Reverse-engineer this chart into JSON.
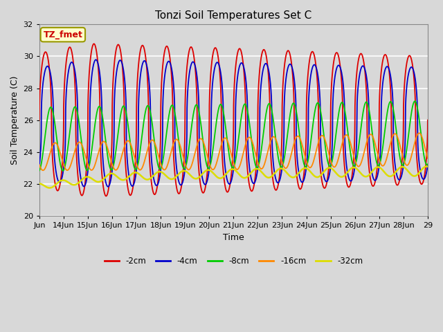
{
  "title": "Tonzi Soil Temperatures Set C",
  "xlabel": "Time",
  "ylabel": "Soil Temperature (C)",
  "ylim": [
    20,
    32
  ],
  "xlim": [
    13,
    29
  ],
  "annotation_text": "TZ_fmet",
  "annotation_bgcolor": "#ffffcc",
  "annotation_edgecolor": "#999900",
  "annotation_textcolor": "#cc0000",
  "background_color": "#d8d8d8",
  "grid_color": "#ffffff",
  "legend_colors": [
    "#dd0000",
    "#0000cc",
    "#00cc00",
    "#ff8800",
    "#dddd00"
  ],
  "legend_labels": [
    "-2cm",
    "-4cm",
    "-8cm",
    "-16cm",
    "-32cm"
  ],
  "xtick_positions": [
    13,
    14,
    15,
    16,
    17,
    18,
    19,
    20,
    21,
    22,
    23,
    24,
    25,
    26,
    27,
    28,
    29
  ],
  "xtick_labels": [
    "Jun",
    "14Jun",
    "15Jun",
    "16Jun",
    "17Jun",
    "18Jun",
    "19Jun",
    "20Jun",
    "21Jun",
    "22Jun",
    "23Jun",
    "24Jun",
    "25Jun",
    "26Jun",
    "27Jun",
    "28Jun",
    "29"
  ]
}
